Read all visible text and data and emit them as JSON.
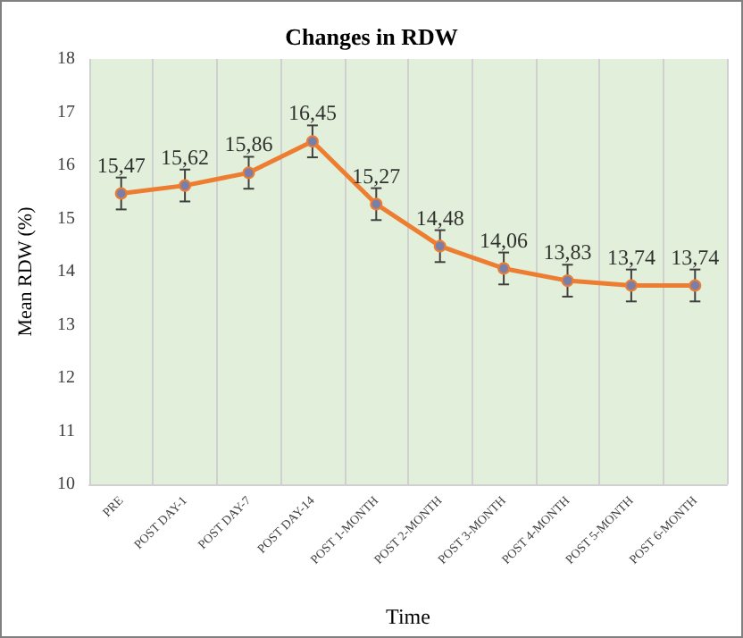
{
  "chart_data": {
    "type": "line",
    "title": "Changes in RDW",
    "xlabel": "Time",
    "ylabel": "Mean RDW (%)",
    "categories": [
      "PRE",
      "POST DAY-1",
      "POST DAY-7",
      "POST DAY-14",
      "POST 1-MONTH",
      "POST 2-MONTH",
      "POST 3-MONTH",
      "POST 4-MONTH",
      "POST 5-MONTH",
      "POST 6-MONTH"
    ],
    "series": [
      {
        "color": "#ed7d31",
        "values": [
          15.47,
          15.62,
          15.86,
          16.45,
          15.27,
          14.48,
          14.06,
          13.83,
          13.74,
          13.74
        ],
        "errors": [
          0.3,
          0.3,
          0.3,
          0.3,
          0.3,
          0.3,
          0.3,
          0.3,
          0.3,
          0.3
        ],
        "value_labels": [
          "15,47",
          "15,62",
          "15,86",
          "16,45",
          "15,27",
          "14,48",
          "14,06",
          "13,83",
          "13,74",
          "13,74"
        ]
      }
    ],
    "ylim": [
      10,
      18
    ],
    "yticks": [
      10,
      11,
      12,
      13,
      14,
      15,
      16,
      17,
      18
    ],
    "grid": "x",
    "marker": "circle",
    "line_style": "solid"
  }
}
